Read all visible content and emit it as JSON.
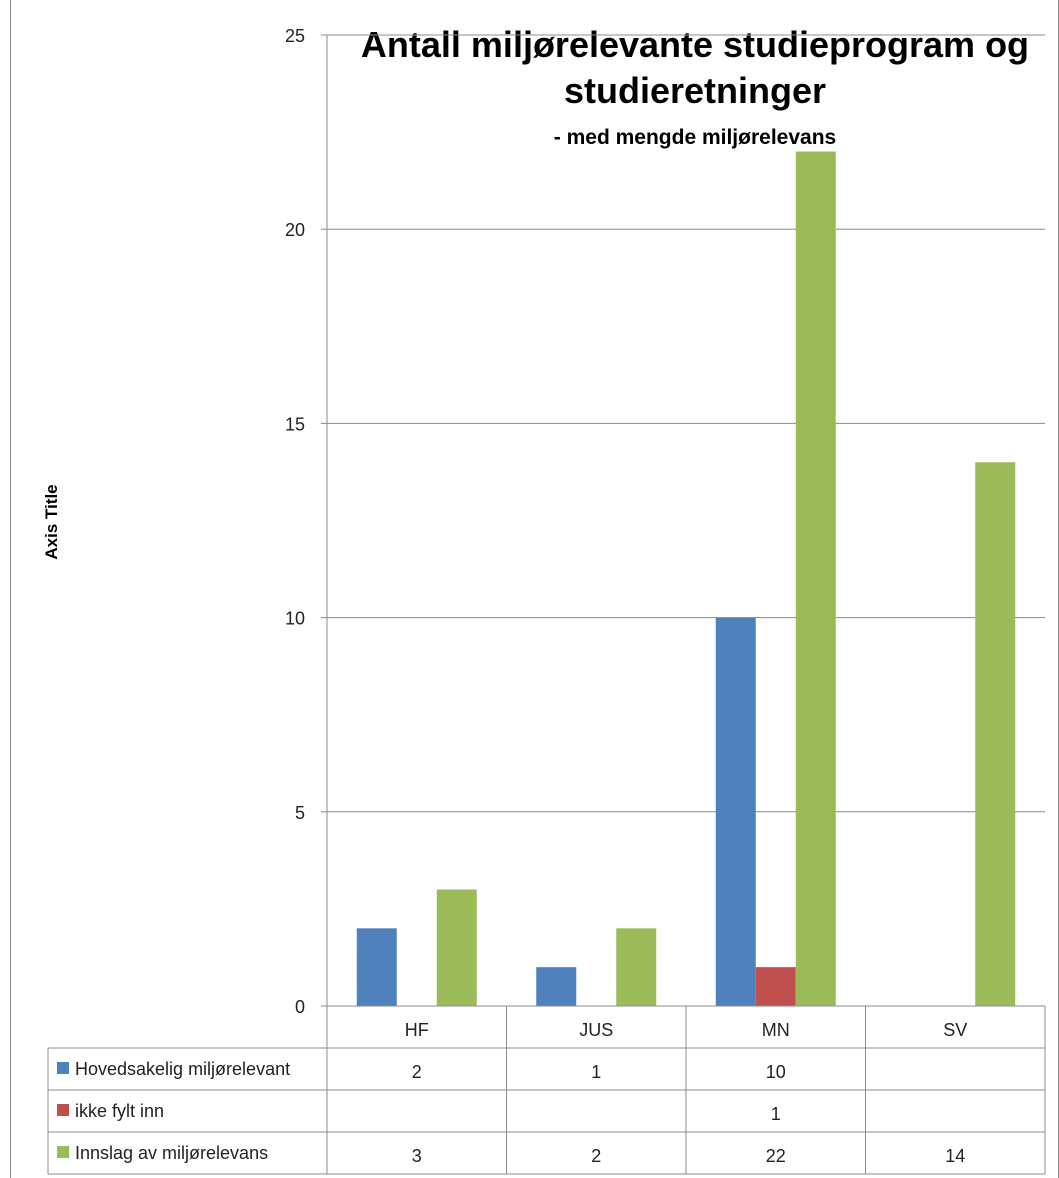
{
  "chart_data": {
    "type": "bar",
    "title": "Antall  miljørelevante studieprogram og studieretninger",
    "title_line1": "Antall  miljørelevante studieprogram og",
    "title_line2": "studieretninger",
    "subtitle": "- med mengde miljørelevans",
    "ylabel": "Axis Title",
    "xlabel": "",
    "categories": [
      "HF",
      "JUS",
      "MN",
      "SV"
    ],
    "ylim": [
      0,
      25
    ],
    "yticks": [
      0,
      5,
      10,
      15,
      20,
      25
    ],
    "grid": true,
    "legend": "data-table-bottom",
    "series": [
      {
        "name": "Hovedsakelig miljørelevant",
        "color": "#4f81bd",
        "values": [
          2,
          1,
          10,
          null
        ],
        "labels": [
          "2",
          "1",
          "10",
          ""
        ]
      },
      {
        "name": "ikke fylt inn",
        "color": "#c0504d",
        "values": [
          null,
          null,
          1,
          null
        ],
        "labels": [
          "",
          "",
          "1",
          ""
        ]
      },
      {
        "name": "Innslag av miljørelevans",
        "color": "#9bbb59",
        "values": [
          3,
          2,
          22,
          14
        ],
        "labels": [
          "3",
          "2",
          "22",
          "14"
        ]
      }
    ]
  }
}
